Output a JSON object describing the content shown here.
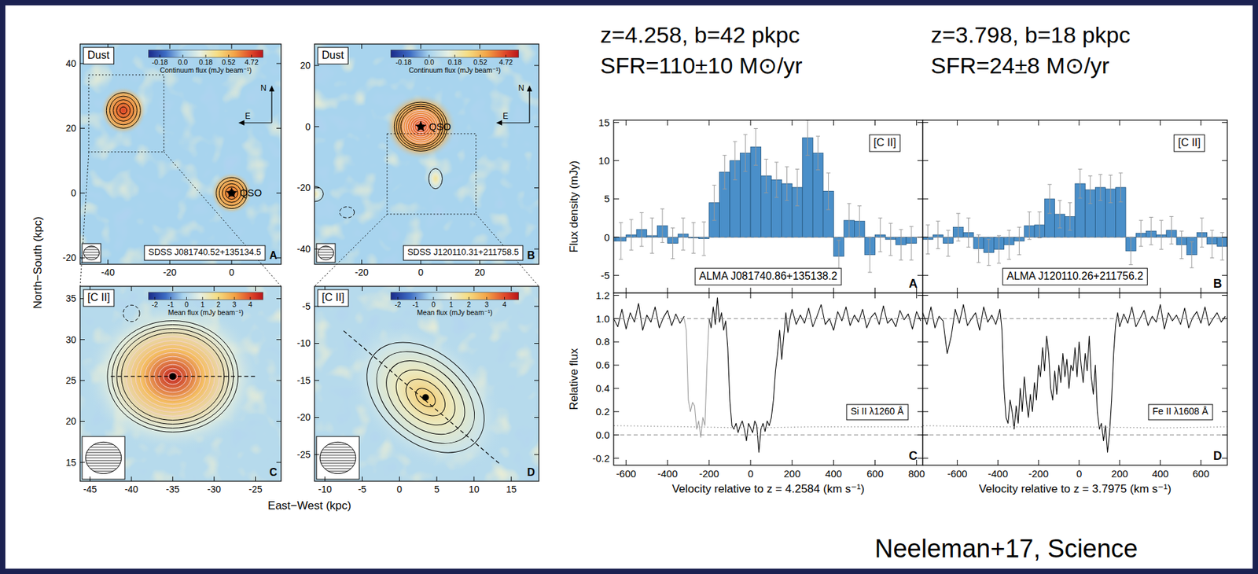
{
  "slide": {
    "headings": [
      {
        "line1": "z=4.258, b=42 pkpc",
        "line2": "SFR=110±10 M⊙/yr"
      },
      {
        "line1": "z=3.798, b=18 pkpc",
        "line2": "SFR=24±8 M⊙/yr"
      }
    ],
    "credit": "Neeleman+17, Science"
  },
  "chart_data": [
    {
      "type": "map",
      "panel": "A",
      "title": "Dust",
      "caption": "SDSS J081740.52+135134.5",
      "ylabel": "North−South (kpc)",
      "xlim": [
        -49,
        16
      ],
      "ylim": [
        -22,
        46
      ],
      "xticks": [
        -40,
        -20,
        0
      ],
      "yticks": [
        -20,
        0,
        20,
        40
      ],
      "colorbar": {
        "label": "Continuum flux (mJy beam⁻¹)",
        "ticks": [
          -0.18,
          {
            "value": 0,
            "label": "0.0"
          },
          0.18,
          0.52,
          4.72
        ]
      },
      "compass": {
        "north": "N",
        "east": "E"
      },
      "zoom": "C",
      "sources": [
        {
          "x": -35,
          "y": 25.5,
          "rx": 5.5,
          "ry": 5.5,
          "levels": 5,
          "peak": 4.72
        },
        {
          "x": 0,
          "y": 0,
          "rx": 5,
          "ry": 4.8,
          "levels": 5,
          "peak": 3.5,
          "label": "QSO"
        }
      ]
    },
    {
      "type": "map",
      "panel": "B",
      "title": "Dust",
      "caption": "SDSS J120110.31+211758.5",
      "xlim": [
        -36,
        40
      ],
      "ylim": [
        -45,
        27
      ],
      "xticks": [
        -20,
        0,
        20
      ],
      "yticks": [
        -40,
        -20,
        0,
        20
      ],
      "colorbar": {
        "label": "Continuum flux (mJy beam⁻¹)",
        "ticks": [
          -0.18,
          {
            "value": 0,
            "label": "0.0"
          },
          0.18,
          0.52,
          4.72
        ]
      },
      "compass": {
        "north": "N",
        "east": "E"
      },
      "zoom": "D",
      "sources": [
        {
          "x": 0,
          "y": 0,
          "rx": 9,
          "ry": 8,
          "levels": 12,
          "peak": 4.72,
          "label": "QSO"
        },
        {
          "x": 5,
          "y": -17,
          "rx": 2.3,
          "ry": 3.3,
          "levels": 1,
          "peak": 0.3
        },
        {
          "x": -36,
          "y": -22,
          "rx": 3,
          "ry": 2.5,
          "levels": 1,
          "peak": 0.25
        },
        {
          "x": -25,
          "y": -28,
          "rx": 2.5,
          "ry": 1.8,
          "levels": 1,
          "line_style": "dashed"
        }
      ]
    },
    {
      "type": "map",
      "panel": "C",
      "title": "[C II]",
      "xlabel": "East−West (kpc)",
      "xlim": [
        -46.2,
        -21.9
      ],
      "ylim": [
        12.7,
        36.5
      ],
      "xticks": [
        -45,
        -40,
        -35,
        -30,
        -25
      ],
      "yticks": [
        15,
        20,
        25,
        30,
        35
      ],
      "colorbar": {
        "label": "Mean flux (mJy beam⁻¹)",
        "lim": [
          -2.4,
          4.8
        ],
        "ticks": [
          -2,
          -1,
          0,
          1,
          2,
          3,
          4
        ]
      },
      "sources": [
        {
          "x": -35,
          "y": 25.5,
          "rx": 7.9,
          "ry": 6.8,
          "levels": 14,
          "peak": 4.6,
          "axis": [
            [
              -42.5,
              25.5
            ],
            [
              -25,
              25.5
            ]
          ]
        },
        {
          "x": -40,
          "y": 33.2,
          "rx": 1,
          "ry": 1,
          "levels": 1,
          "line_style": "dashed"
        }
      ]
    },
    {
      "type": "map",
      "panel": "D",
      "title": "[C II]",
      "xlim": [
        -11.4,
        18.7
      ],
      "ylim": [
        -28.6,
        -2.3
      ],
      "xticks": [
        -10,
        -5,
        0,
        5,
        10,
        15
      ],
      "yticks": [
        -25,
        -20,
        -15,
        -10,
        -5
      ],
      "colorbar": {
        "label": "Mean flux (mJy beam⁻¹)",
        "lim": [
          -2.4,
          4.8
        ],
        "ticks": [
          -2,
          -1,
          0,
          1,
          2,
          3,
          4
        ]
      },
      "sources": [
        {
          "x": 3.5,
          "y": -17.3,
          "rx": 9,
          "ry": 6,
          "levels": 6,
          "peak": 2.3,
          "axis": [
            [
              -7.5,
              -8.3
            ],
            [
              13.5,
              -26.3
            ]
          ]
        }
      ]
    },
    {
      "type": "bar",
      "panel": "A",
      "title": "[C II]",
      "caption": "ALMA J081740.86+135138.2",
      "ylabel": "Flux density (mJy)",
      "tick_labels": "y",
      "color": "#4a8fc9",
      "xlim": [
        -660,
        830
      ],
      "ylim": [
        -7.3,
        15.3
      ],
      "xticks": [
        -600,
        -400,
        -200,
        0,
        200,
        400,
        600,
        800
      ],
      "yticks": [
        -5,
        0,
        5,
        10,
        15
      ],
      "reference_lines": [
        0
      ],
      "x": [
        -675,
        -625,
        -575,
        -525,
        -475,
        -425,
        -375,
        -325,
        -275,
        -225,
        -175,
        -125,
        -75,
        -25,
        25,
        75,
        125,
        175,
        225,
        275,
        325,
        375,
        425,
        475,
        525,
        575,
        625,
        675,
        725,
        775
      ],
      "values": [
        -0.5,
        -0.5,
        0.3,
        1.0,
        0.2,
        1.5,
        -0.8,
        0.4,
        -0.1,
        -0.2,
        4.5,
        8.5,
        10.0,
        11.0,
        11.8,
        8.0,
        7.5,
        7.0,
        6.5,
        13.0,
        11.0,
        6.0,
        -2.5,
        2.2,
        2.1,
        -2.3,
        0.3,
        -0.3,
        -1.0,
        -0.8
      ],
      "errors": [
        2.5,
        2.4,
        2.0,
        2.2,
        2.3,
        2.2,
        2.0,
        2.1,
        2.0,
        2.2,
        2.3,
        2.2,
        2.5,
        2.4,
        2.4,
        2.2,
        2.3,
        2.2,
        2.4,
        2.3,
        2.2,
        2.4,
        2.1,
        2.2,
        2.0,
        2.3,
        2.2,
        2.1,
        2.0,
        2.2
      ]
    },
    {
      "type": "bar",
      "panel": "B",
      "title": "[C II]",
      "caption": "ALMA J120110.26+211756.2",
      "tick_labels": false,
      "color": "#4a8fc9",
      "xlim": [
        -770,
        730
      ],
      "ylim": [
        -7.3,
        15.3
      ],
      "xticks": [
        -600,
        -400,
        -200,
        0,
        200,
        400,
        600
      ],
      "yticks": [
        -5,
        0,
        5,
        10,
        15
      ],
      "reference_lines": [
        0
      ],
      "x": [
        -745,
        -695,
        -645,
        -595,
        -545,
        -495,
        -445,
        -395,
        -345,
        -295,
        -245,
        -195,
        -145,
        -95,
        -45,
        5,
        55,
        105,
        155,
        205,
        255,
        305,
        355,
        405,
        455,
        505,
        555,
        605,
        655,
        705
      ],
      "values": [
        -0.3,
        0.3,
        -0.8,
        1.3,
        0.6,
        -1.5,
        -2.0,
        -1.6,
        -1.0,
        -0.5,
        1.5,
        1.6,
        5.0,
        3.0,
        2.7,
        7.0,
        6.2,
        6.5,
        6.3,
        6.5,
        -1.8,
        0.5,
        0.8,
        0.3,
        0.9,
        -1.0,
        -2.3,
        0.6,
        -0.9,
        -1.2
      ],
      "errors": [
        1.9,
        1.8,
        1.7,
        1.8,
        1.9,
        1.8,
        1.7,
        1.8,
        1.9,
        1.8,
        1.8,
        1.7,
        1.9,
        1.8,
        1.8,
        1.9,
        1.8,
        1.7,
        1.8,
        1.9,
        1.8,
        1.7,
        1.8,
        1.9,
        1.8,
        1.8,
        1.7,
        1.9,
        1.8,
        1.8
      ]
    },
    {
      "type": "line",
      "panel": "C",
      "title": "Si II λ1260 Å",
      "xlabel": "Velocity relative to z = 4.2584 (km s⁻¹)",
      "ylabel": "Relative flux",
      "xlim": [
        -660,
        830
      ],
      "ylim": [
        -0.26,
        1.22
      ],
      "xticks": [
        -600,
        -400,
        -200,
        0,
        200,
        400,
        600,
        800
      ],
      "yticks": [
        -0.2,
        {
          "value": 0,
          "label": "0.0"
        },
        0.2,
        0.4,
        0.6,
        0.8,
        {
          "value": 1,
          "label": "1.0"
        },
        1.2
      ],
      "reference_lines": [
        0,
        1
      ],
      "series": [
        {
          "color": "#000000",
          "x": [
            -660,
            -640,
            -620,
            -600,
            -580,
            -560,
            -540,
            -520,
            -500,
            -480,
            -460,
            -440,
            -420,
            -400,
            -380,
            -360,
            -340,
            -320,
            -260,
            -200,
            -190,
            -180,
            -170,
            -160,
            -150,
            -140,
            -130,
            -120,
            -110,
            -100,
            -90,
            -80,
            -70,
            -60,
            -50,
            -40,
            -30,
            -20,
            -10,
            0,
            10,
            20,
            30,
            40,
            50,
            60,
            70,
            80,
            90,
            100,
            110,
            120,
            130,
            140,
            150,
            160,
            170,
            180,
            190,
            200,
            220,
            240,
            260,
            280,
            300,
            320,
            340,
            360,
            380,
            400,
            420,
            440,
            460,
            480,
            500,
            520,
            540,
            560,
            580,
            600,
            620,
            640,
            660,
            680,
            700,
            720,
            740,
            760,
            780,
            800,
            820
          ],
          "values": [
            1.0,
            0.93,
            1.08,
            0.91,
            1.05,
            0.97,
            1.13,
            0.9,
            1.03,
            0.97,
            1.1,
            0.92,
            1.01,
            1.07,
            0.94,
            1.04,
            0.96,
            1.02,
            null,
            1.0,
            0.92,
            1.1,
            0.95,
            1.18,
            0.97,
            1.05,
            0.9,
            0.98,
            0.75,
            0.3,
            0.08,
            0.05,
            0.1,
            0.02,
            0.08,
            0.12,
            0.05,
            -0.05,
            0.1,
            0.06,
            0.02,
            0.12,
            0.08,
            -0.15,
            0.05,
            0.1,
            0.03,
            0.12,
            0.08,
            0.15,
            0.3,
            0.55,
            0.7,
            0.9,
            0.65,
            0.85,
            1.05,
            0.88,
            1.0,
            1.08,
            0.95,
            1.03,
            0.96,
            1.09,
            0.93,
            1.02,
            1.12,
            0.95,
            1.0,
            0.9,
            1.06,
            0.98,
            1.1,
            0.94,
            1.03,
            0.97,
            1.08,
            0.92,
            1.01,
            1.05,
            0.95,
            1.11,
            0.96,
            1.0,
            0.93,
            1.07,
            0.99,
            1.04,
            0.91,
            1.06,
            0.98
          ]
        },
        {
          "color": "#9a9a9a",
          "x": [
            -320,
            -310,
            -300,
            -290,
            -280,
            -270,
            -260,
            -250,
            -240,
            -230,
            -220,
            -210,
            -200
          ],
          "values": [
            1.0,
            0.9,
            0.3,
            0.2,
            0.28,
            0.25,
            0.05,
            0.12,
            -0.02,
            0.15,
            0.08,
            0.6,
            1.0
          ]
        },
        {
          "color": "#aaaaaa",
          "line_style": "dotted",
          "x": [
            -660,
            -300,
            0,
            300,
            830
          ],
          "values": [
            0.08,
            0.07,
            0.06,
            0.07,
            0.07
          ]
        }
      ]
    },
    {
      "type": "line",
      "panel": "D",
      "title": "Fe II λ1608 Å",
      "xlabel": "Velocity relative to z = 3.7975 (km s⁻¹)",
      "tick_labels": "x",
      "xlim": [
        -770,
        730
      ],
      "ylim": [
        -0.26,
        1.22
      ],
      "xticks": [
        -600,
        -400,
        -200,
        0,
        200,
        400,
        600
      ],
      "yticks": [
        -0.2,
        {
          "value": 0,
          "label": "0.0"
        },
        0.2,
        0.4,
        0.6,
        0.8,
        {
          "value": 1,
          "label": "1.0"
        },
        1.2
      ],
      "reference_lines": [
        0,
        1
      ],
      "series": [
        {
          "color": "#000000",
          "x": [
            -770,
            -750,
            -730,
            -710,
            -690,
            -670,
            -650,
            -630,
            -610,
            -590,
            -570,
            -550,
            -530,
            -510,
            -490,
            -470,
            -450,
            -430,
            -410,
            -390,
            -380,
            -370,
            -360,
            -350,
            -340,
            -330,
            -320,
            -310,
            -300,
            -290,
            -280,
            -270,
            -260,
            -250,
            -240,
            -230,
            -220,
            -210,
            -200,
            -190,
            -180,
            -170,
            -160,
            -150,
            -140,
            -130,
            -120,
            -110,
            -100,
            -90,
            -80,
            -70,
            -60,
            -50,
            -40,
            -30,
            -20,
            -10,
            0,
            10,
            20,
            30,
            40,
            50,
            60,
            70,
            80,
            90,
            100,
            110,
            120,
            130,
            140,
            150,
            160,
            170,
            180,
            190,
            200,
            220,
            240,
            260,
            280,
            300,
            320,
            340,
            360,
            380,
            400,
            420,
            440,
            460,
            480,
            500,
            520,
            540,
            560,
            580,
            600,
            620,
            640,
            660,
            680,
            700,
            720
          ],
          "values": [
            1.05,
            0.95,
            1.1,
            0.92,
            1.02,
            0.98,
            0.7,
            0.85,
            1.08,
            0.96,
            1.12,
            0.94,
            1.0,
            1.05,
            0.9,
            1.1,
            0.97,
            1.03,
            0.95,
            1.08,
            0.9,
            0.4,
            0.15,
            0.1,
            0.3,
            0.2,
            0.05,
            0.25,
            0.1,
            0.4,
            0.2,
            0.5,
            0.3,
            0.15,
            0.35,
            0.2,
            0.45,
            0.3,
            0.6,
            0.5,
            0.75,
            0.55,
            0.85,
            0.7,
            0.4,
            0.3,
            0.55,
            0.35,
            0.6,
            0.45,
            0.7,
            0.5,
            0.65,
            0.4,
            0.6,
            0.55,
            0.75,
            0.5,
            0.8,
            0.6,
            0.45,
            0.7,
            0.55,
            0.85,
            0.5,
            0.35,
            0.6,
            0.2,
            0.05,
            0.1,
            -0.05,
            0.08,
            -0.15,
            0.02,
            0.3,
            0.7,
            0.95,
            1.05,
            0.93,
            1.04,
            0.96,
            1.1,
            0.93,
            1.0,
            1.07,
            0.94,
            1.02,
            0.97,
            1.12,
            0.91,
            1.05,
            0.98,
            1.03,
            0.95,
            1.09,
            0.92,
            1.01,
            1.06,
            0.96,
            1.1,
            0.94,
            1.0,
            1.05,
            0.97,
            1.02
          ]
        },
        {
          "color": "#aaaaaa",
          "line_style": "dotted",
          "x": [
            -770,
            -400,
            0,
            400,
            730
          ],
          "values": [
            0.08,
            0.07,
            0.07,
            0.06,
            0.07
          ]
        }
      ]
    }
  ]
}
